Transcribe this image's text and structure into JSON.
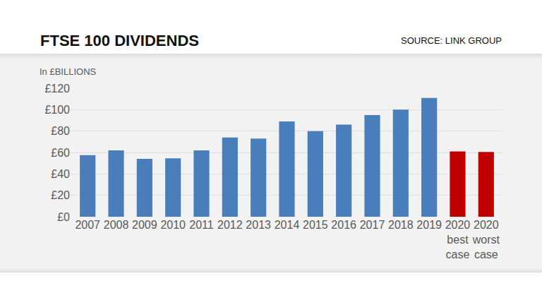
{
  "chart_data": {
    "type": "bar",
    "title": "FTSE 100 DIVIDENDS",
    "subtitle": "SOURCE: LINK GROUP",
    "y_label": "In £BILLIONS",
    "categories": [
      "2007",
      "2008",
      "2009",
      "2010",
      "2011",
      "2012",
      "2013",
      "2014",
      "2015",
      "2016",
      "2017",
      "2018",
      "2019",
      "2020 best case",
      "2020 worst case"
    ],
    "values": [
      57.5,
      62,
      54,
      54.5,
      62,
      74,
      73,
      89,
      80,
      86,
      95,
      100,
      111,
      61,
      60.5
    ],
    "colors": [
      "#4a7ebb",
      "#4a7ebb",
      "#4a7ebb",
      "#4a7ebb",
      "#4a7ebb",
      "#4a7ebb",
      "#4a7ebb",
      "#4a7ebb",
      "#4a7ebb",
      "#4a7ebb",
      "#4a7ebb",
      "#4a7ebb",
      "#4a7ebb",
      "#c00000",
      "#c00000"
    ],
    "ylim": [
      0,
      120
    ],
    "yticks": [
      {
        "value": 0,
        "label": "£0"
      },
      {
        "value": 20,
        "label": "£20"
      },
      {
        "value": 40,
        "label": "£40"
      },
      {
        "value": 60,
        "label": "£60"
      },
      {
        "value": 80,
        "label": "£80"
      },
      {
        "value": 100,
        "label": "£100"
      },
      {
        "value": 120,
        "label": "£120"
      }
    ],
    "grid": true
  }
}
